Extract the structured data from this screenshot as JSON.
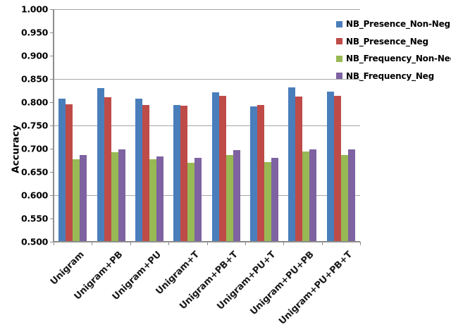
{
  "chart_data": {
    "type": "bar",
    "title": "",
    "xlabel": "",
    "ylabel": "Accuracy",
    "ylim": [
      0.5,
      1.0
    ],
    "y_tick_labels": [
      "1.000",
      "0.950",
      "0.900",
      "0.850",
      "0.800",
      "0.750",
      "0.700",
      "0.650",
      "0.600",
      "0.550",
      "0.500"
    ],
    "gridline_values": [
      1.0,
      0.85,
      0.75,
      0.6
    ],
    "grid": "partial-horizontal",
    "legend_position": "top-right",
    "categories": [
      "Unigram",
      "Unigram+PB",
      "Unigram+PU",
      "Unigram+T",
      "Unigram+PB+T",
      "Unigram+PU+T",
      "Unigram+PU+PB",
      "Unigram+PU+PB+T"
    ],
    "series": [
      {
        "name": "NB_Presence_Non-Neg",
        "color": "#4a7ebb",
        "values": [
          0.808,
          0.83,
          0.807,
          0.794,
          0.821,
          0.791,
          0.832,
          0.822
        ]
      },
      {
        "name": "NB_Presence_Neg",
        "color": "#be4b48",
        "values": [
          0.795,
          0.811,
          0.794,
          0.792,
          0.814,
          0.794,
          0.812,
          0.814
        ]
      },
      {
        "name": "NB_Frequency_Non-Neg",
        "color": "#98b954",
        "values": [
          0.678,
          0.693,
          0.677,
          0.67,
          0.686,
          0.671,
          0.694,
          0.687
        ]
      },
      {
        "name": "NB_Frequency_Neg",
        "color": "#7e62a1",
        "values": [
          0.686,
          0.699,
          0.684,
          0.681,
          0.697,
          0.681,
          0.699,
          0.698
        ]
      }
    ]
  },
  "colors": {
    "gridline": "#a6a6a6",
    "axis": "#8c8c8c",
    "text": "#000000",
    "background": "#ffffff"
  }
}
